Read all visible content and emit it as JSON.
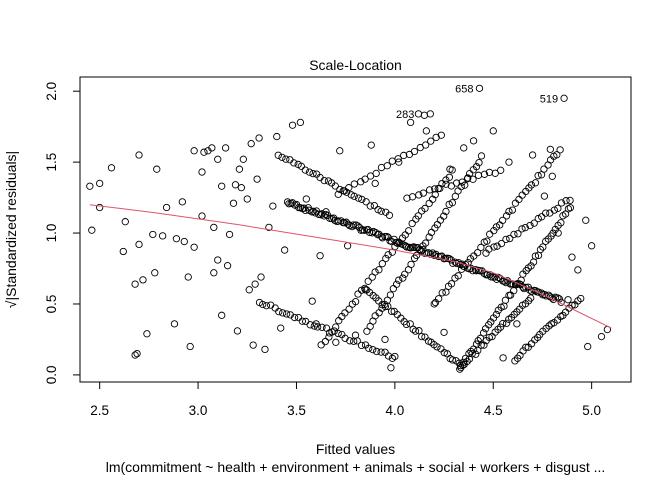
{
  "chart_data": {
    "type": "scatter",
    "title": "Scale-Location",
    "xlabel": "Fitted values",
    "ylabel": "√|Standardized residuals|",
    "subtitle": "lm(commitment ~ health + environment + animals + social + workers + disgust ...",
    "xlim": [
      2.4,
      5.2
    ],
    "ylim": [
      -0.05,
      2.1
    ],
    "x_ticks": [
      "2.5",
      "3.0",
      "3.5",
      "4.0",
      "4.5",
      "5.0"
    ],
    "y_ticks": [
      "0.0",
      "0.5",
      "1.0",
      "1.5",
      "2.0"
    ],
    "grid": false,
    "colors": {
      "points": "#000000",
      "smoother": "#df536b",
      "frame": "#000000"
    },
    "annotations": [
      {
        "label": "658",
        "x": 4.43,
        "y": 2.02
      },
      {
        "label": "519",
        "x": 4.86,
        "y": 1.95
      },
      {
        "label": "283",
        "x": 4.13,
        "y": 1.84
      }
    ],
    "lowess": {
      "x": [
        2.45,
        2.8,
        3.2,
        3.6,
        4.0,
        4.3,
        4.5,
        4.7,
        4.85,
        5.1
      ],
      "y": [
        1.2,
        1.14,
        1.06,
        0.97,
        0.88,
        0.8,
        0.72,
        0.6,
        0.5,
        0.33
      ]
    },
    "points": [
      [
        2.45,
        1.33
      ],
      [
        2.46,
        1.02
      ],
      [
        2.5,
        1.35
      ],
      [
        2.5,
        1.18
      ],
      [
        2.56,
        1.46
      ],
      [
        2.62,
        0.87
      ],
      [
        2.63,
        1.08
      ],
      [
        2.68,
        0.64
      ],
      [
        2.68,
        0.14
      ],
      [
        2.69,
        0.15
      ],
      [
        2.7,
        1.55
      ],
      [
        2.7,
        0.92
      ],
      [
        2.72,
        0.67
      ],
      [
        2.74,
        0.29
      ],
      [
        2.77,
        0.99
      ],
      [
        2.78,
        0.72
      ],
      [
        2.79,
        1.45
      ],
      [
        2.82,
        0.98
      ],
      [
        2.84,
        1.18
      ],
      [
        2.88,
        0.36
      ],
      [
        2.89,
        0.96
      ],
      [
        2.92,
        1.22
      ],
      [
        2.93,
        0.94
      ],
      [
        2.95,
        0.69
      ],
      [
        2.96,
        0.2
      ],
      [
        2.98,
        0.9
      ],
      [
        2.98,
        1.58
      ],
      [
        3.02,
        1.12
      ],
      [
        3.02,
        1.43
      ],
      [
        3.03,
        1.57
      ],
      [
        3.05,
        1.58
      ],
      [
        3.07,
        1.6
      ],
      [
        3.08,
        1.04
      ],
      [
        3.08,
        0.72
      ],
      [
        3.1,
        0.81
      ],
      [
        3.1,
        1.52
      ],
      [
        3.12,
        1.33
      ],
      [
        3.12,
        0.42
      ],
      [
        3.14,
        1.6
      ],
      [
        3.15,
        0.77
      ],
      [
        3.16,
        0.99
      ],
      [
        3.18,
        1.21
      ],
      [
        3.19,
        1.34
      ],
      [
        3.2,
        0.31
      ],
      [
        3.21,
        1.45
      ],
      [
        3.22,
        1.32
      ],
      [
        3.23,
        1.52
      ],
      [
        3.25,
        1.24
      ],
      [
        3.26,
        0.6
      ],
      [
        3.27,
        1.63
      ],
      [
        3.28,
        0.21
      ],
      [
        3.29,
        0.64
      ],
      [
        3.3,
        1.38
      ],
      [
        3.31,
        1.67
      ],
      [
        3.32,
        0.69
      ],
      [
        3.34,
        0.18
      ],
      [
        3.36,
        1.04
      ],
      [
        3.38,
        1.19
      ],
      [
        3.4,
        1.68
      ],
      [
        3.42,
        0.33
      ],
      [
        3.44,
        0.88
      ],
      [
        3.48,
        1.76
      ],
      [
        3.52,
        1.78
      ],
      [
        3.55,
        1.24
      ],
      [
        3.58,
        0.52
      ],
      [
        3.6,
        0.36
      ],
      [
        3.62,
        0.84
      ],
      [
        3.65,
        1.15
      ],
      [
        3.7,
        0.23
      ],
      [
        3.72,
        1.58
      ],
      [
        3.76,
        0.91
      ],
      [
        3.8,
        0.28
      ],
      [
        3.85,
        0.6
      ],
      [
        3.88,
        1.62
      ],
      [
        3.9,
        1.35
      ],
      [
        3.95,
        0.25
      ],
      [
        3.98,
        0.05
      ],
      [
        4.0,
        0.13
      ],
      [
        4.02,
        1.5
      ],
      [
        4.08,
        1.78
      ],
      [
        4.12,
        1.84
      ],
      [
        4.15,
        1.83
      ],
      [
        4.18,
        1.84
      ],
      [
        4.16,
        1.72
      ],
      [
        4.2,
        0.5
      ],
      [
        4.25,
        0.3
      ],
      [
        4.28,
        1.45
      ],
      [
        4.33,
        0.04
      ],
      [
        4.35,
        1.6
      ],
      [
        4.4,
        1.65
      ],
      [
        4.43,
        2.02
      ],
      [
        4.5,
        1.72
      ],
      [
        4.55,
        0.12
      ],
      [
        4.58,
        1.5
      ],
      [
        4.62,
        0.36
      ],
      [
        4.7,
        1.55
      ],
      [
        4.76,
        1.26
      ],
      [
        4.79,
        1.59
      ],
      [
        4.8,
        1.4
      ],
      [
        4.83,
        1.0
      ],
      [
        4.86,
        1.95
      ],
      [
        4.88,
        0.53
      ],
      [
        4.9,
        0.83
      ],
      [
        4.93,
        0.74
      ],
      [
        4.97,
        1.09
      ],
      [
        4.98,
        0.2
      ],
      [
        5.0,
        0.91
      ],
      [
        5.05,
        0.27
      ],
      [
        5.08,
        0.32
      ]
    ],
    "point_bands": [
      {
        "x_from": 3.45,
        "x_to": 4.85,
        "y_from": 1.22,
        "y_to": 0.52,
        "count": 150
      },
      {
        "x_from": 3.3,
        "x_to": 4.0,
        "y_from": 0.52,
        "y_to": 0.12,
        "count": 35
      },
      {
        "x_from": 3.4,
        "x_to": 3.98,
        "y_from": 1.56,
        "y_to": 1.12,
        "count": 30
      },
      {
        "x_from": 3.85,
        "x_to": 4.35,
        "y_from": 0.6,
        "y_to": 0.05,
        "count": 32
      },
      {
        "x_from": 4.33,
        "x_to": 4.7,
        "y_from": 0.05,
        "y_to": 0.56,
        "count": 26
      },
      {
        "x_from": 4.33,
        "x_to": 4.9,
        "y_from": 0.05,
        "y_to": 1.2,
        "count": 45
      },
      {
        "x_from": 4.6,
        "x_to": 4.95,
        "y_from": 0.1,
        "y_to": 0.55,
        "count": 24
      },
      {
        "x_from": 3.85,
        "x_to": 4.45,
        "y_from": 0.3,
        "y_to": 1.55,
        "count": 40
      },
      {
        "x_from": 4.2,
        "x_to": 4.85,
        "y_from": 0.5,
        "y_to": 1.6,
        "count": 40
      },
      {
        "x_from": 3.62,
        "x_to": 4.3,
        "y_from": 0.2,
        "y_to": 1.45,
        "count": 40
      },
      {
        "x_from": 4.45,
        "x_to": 4.9,
        "y_from": 0.85,
        "y_to": 1.25,
        "count": 22
      },
      {
        "x_from": 3.7,
        "x_to": 4.25,
        "y_from": 1.27,
        "y_to": 1.7,
        "count": 20
      },
      {
        "x_from": 4.05,
        "x_to": 4.55,
        "y_from": 1.25,
        "y_to": 1.45,
        "count": 18
      }
    ]
  }
}
